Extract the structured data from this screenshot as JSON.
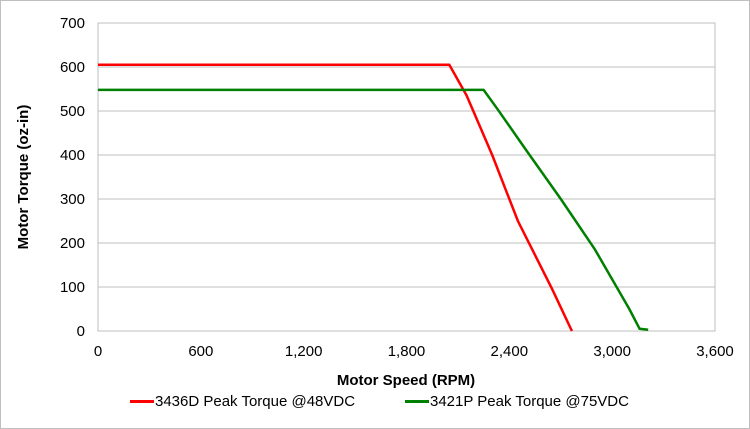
{
  "chart_data": {
    "type": "line",
    "title": "",
    "xlabel": "Motor Speed (RPM)",
    "ylabel": "Motor Torque (oz-in)",
    "xlim": [
      0,
      3600
    ],
    "ylim": [
      0,
      700
    ],
    "x_ticks": [
      "0",
      "600",
      "1,200",
      "1,800",
      "2,400",
      "3,000",
      "3,600"
    ],
    "y_ticks": [
      "0",
      "100",
      "200",
      "300",
      "400",
      "500",
      "600",
      "700"
    ],
    "grid": "horizontal",
    "legend_position": "bottom",
    "series": [
      {
        "name": "3436D Peak Torque @48VDC",
        "color": "#ff0000",
        "points": [
          [
            0,
            605
          ],
          [
            2050,
            605
          ],
          [
            2150,
            536
          ],
          [
            2300,
            400
          ],
          [
            2450,
            250
          ],
          [
            2650,
            95
          ],
          [
            2765,
            0
          ]
        ]
      },
      {
        "name": "3421P Peak Torque @75VDC",
        "color": "#008000",
        "points": [
          [
            0,
            548
          ],
          [
            2250,
            548
          ],
          [
            2330,
            505
          ],
          [
            2500,
            410
          ],
          [
            2700,
            300
          ],
          [
            2900,
            185
          ],
          [
            3100,
            50
          ],
          [
            3160,
            5
          ],
          [
            3210,
            3
          ]
        ]
      }
    ]
  },
  "legend": {
    "items": [
      {
        "label": "3436D Peak Torque @48VDC",
        "color": "#ff0000"
      },
      {
        "label": "3421P Peak Torque @75VDC",
        "color": "#008000"
      }
    ]
  }
}
